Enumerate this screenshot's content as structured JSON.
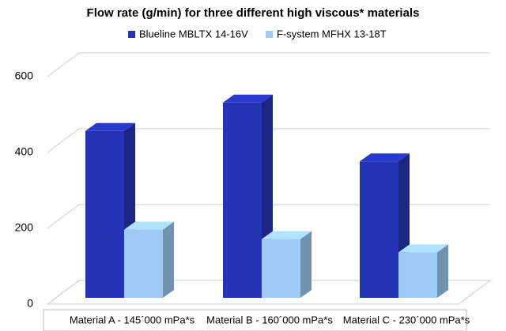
{
  "chart_data": {
    "type": "bar3d",
    "title": "Flow rate (g/min) for three different high viscous* materials",
    "categories": [
      "Material A - 145´000 mPa*s",
      "Material B - 160´000 mPa*s",
      "Material C - 230´000 mPa*s"
    ],
    "series": [
      {
        "name": "Blueline MBLTX 14-16V",
        "color": "#2533b5",
        "values": [
          440,
          515,
          360
        ]
      },
      {
        "name": "F-system MFHX 13-18T",
        "color": "#9dcbf5",
        "values": [
          180,
          155,
          120
        ]
      }
    ],
    "ylim": [
      0,
      600
    ],
    "yticks": [
      0,
      200,
      400,
      600
    ],
    "grid": true,
    "legend": "top"
  }
}
